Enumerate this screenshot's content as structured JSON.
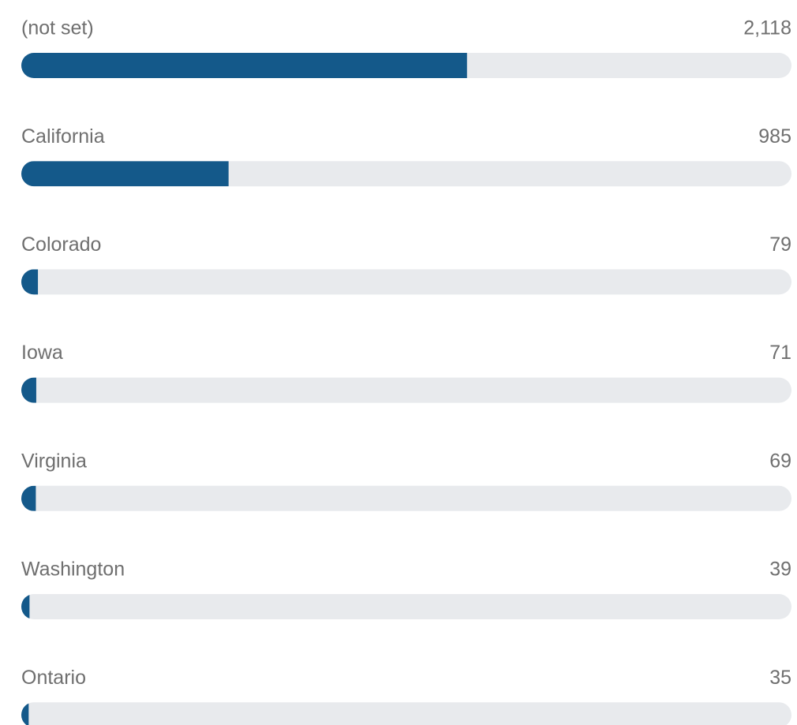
{
  "chart_data": {
    "type": "bar",
    "orientation": "horizontal",
    "categories": [
      "(not set)",
      "California",
      "Colorado",
      "Iowa",
      "Virginia",
      "Washington",
      "Ontario"
    ],
    "values": [
      2118,
      985,
      79,
      71,
      69,
      39,
      35
    ],
    "value_labels": [
      "2,118",
      "985",
      "79",
      "71",
      "69",
      "39",
      "35"
    ],
    "color": "#14598a",
    "track_color": "#e8eaed",
    "xlim": [
      0,
      3660
    ]
  }
}
